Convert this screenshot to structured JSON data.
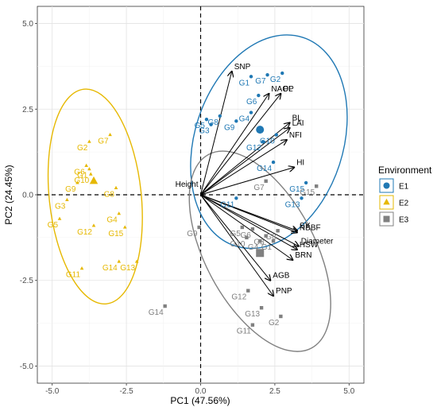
{
  "chart_data": {
    "type": "scatter",
    "subtype": "PCA biplot",
    "xlabel": "PC1 (47.56%)",
    "ylabel": "PC2 (24.45%)",
    "xlim": [
      -5.5,
      5.5
    ],
    "ylim": [
      -5.5,
      5.5
    ],
    "xticks": [
      -5.0,
      -2.5,
      0.0,
      2.5,
      5.0
    ],
    "yticks": [
      -5.0,
      -2.5,
      0.0,
      2.5,
      5.0
    ],
    "xtick_labels": [
      "-5.0",
      "-2.5",
      "0.0",
      "2.5",
      "5.0"
    ],
    "ytick_labels": [
      "-5.0",
      "-2.5",
      "0.0",
      "2.5",
      "5.0"
    ],
    "grid": true,
    "reference_lines": {
      "x": 0,
      "y": 0,
      "style": "dashed"
    },
    "legend": {
      "title": "Environment",
      "position": "right",
      "entries": [
        {
          "name": "E1",
          "shape": "circle",
          "color": "#1f78b4"
        },
        {
          "name": "E2",
          "shape": "triangle",
          "color": "#e6b800"
        },
        {
          "name": "E3",
          "shape": "square",
          "color": "#808080"
        }
      ]
    },
    "series": [
      {
        "name": "E1",
        "shape": "circle",
        "color": "#1f78b4",
        "centroid": [
          2.0,
          1.9
        ],
        "points": [
          {
            "label": "G1",
            "x": 1.7,
            "y": 3.45
          },
          {
            "label": "G2",
            "x": 2.75,
            "y": 3.55
          },
          {
            "label": "G3",
            "x": 0.35,
            "y": 2.05
          },
          {
            "label": "G4",
            "x": 1.7,
            "y": 2.4
          },
          {
            "label": "G5",
            "x": 0.2,
            "y": 2.2
          },
          {
            "label": "G6",
            "x": 1.95,
            "y": 2.9
          },
          {
            "label": "G7",
            "x": 2.25,
            "y": 3.5
          },
          {
            "label": "G8",
            "x": 0.65,
            "y": 2.3
          },
          {
            "label": "G9",
            "x": 1.2,
            "y": 2.15
          },
          {
            "label": "G10",
            "x": 2.55,
            "y": 1.75
          },
          {
            "label": "G11",
            "x": 1.2,
            "y": -0.1
          },
          {
            "label": "G12",
            "x": 2.1,
            "y": 1.55
          },
          {
            "label": "G13",
            "x": 3.4,
            "y": -0.1
          },
          {
            "label": "G14",
            "x": 2.45,
            "y": 0.95
          },
          {
            "label": "G15",
            "x": 3.55,
            "y": 0.35
          }
        ]
      },
      {
        "name": "E2",
        "shape": "triangle",
        "color": "#e6b800",
        "centroid": [
          -3.6,
          0.4
        ],
        "points": [
          {
            "label": "G1",
            "x": -3.75,
            "y": 0.75
          },
          {
            "label": "G2",
            "x": -3.75,
            "y": 1.55
          },
          {
            "label": "G3",
            "x": -4.5,
            "y": -0.15
          },
          {
            "label": "G4",
            "x": -2.75,
            "y": -0.55
          },
          {
            "label": "G5",
            "x": -4.75,
            "y": -0.7
          },
          {
            "label": "G6",
            "x": -3.85,
            "y": 0.85
          },
          {
            "label": "G7",
            "x": -3.05,
            "y": 1.75
          },
          {
            "label": "G8",
            "x": -2.85,
            "y": 0.2
          },
          {
            "label": "G9",
            "x": -4.15,
            "y": 0.35
          },
          {
            "label": "G10",
            "x": -3.7,
            "y": 0.6
          },
          {
            "label": "G11",
            "x": -4.0,
            "y": -2.15
          },
          {
            "label": "G12",
            "x": -3.6,
            "y": -0.9
          },
          {
            "label": "G13",
            "x": -2.15,
            "y": -1.95
          },
          {
            "label": "G14",
            "x": -2.75,
            "y": -1.95
          },
          {
            "label": "G15",
            "x": -2.55,
            "y": -0.95
          }
        ]
      },
      {
        "name": "E3",
        "shape": "square",
        "color": "#808080",
        "centroid": [
          2.0,
          -1.7
        ],
        "points": [
          {
            "label": "G1",
            "x": 2.45,
            "y": -1.35
          },
          {
            "label": "G2",
            "x": 2.7,
            "y": -3.55
          },
          {
            "label": "G3",
            "x": 2.2,
            "y": -1.2
          },
          {
            "label": "G4",
            "x": 2.0,
            "y": -1.35
          },
          {
            "label": "G5",
            "x": 1.4,
            "y": -0.95
          },
          {
            "label": "G6",
            "x": 1.75,
            "y": -1.0
          },
          {
            "label": "G7",
            "x": 2.2,
            "y": 0.4
          },
          {
            "label": "G8",
            "x": 2.6,
            "y": -1.05
          },
          {
            "label": "G9",
            "x": -0.05,
            "y": -0.95
          },
          {
            "label": "G10",
            "x": 1.55,
            "y": -1.25
          },
          {
            "label": "G11",
            "x": 1.75,
            "y": -3.8
          },
          {
            "label": "G12",
            "x": 1.6,
            "y": -2.8
          },
          {
            "label": "G13",
            "x": 2.05,
            "y": -3.3
          },
          {
            "label": "G14",
            "x": -1.2,
            "y": -3.25
          },
          {
            "label": "G15",
            "x": 3.9,
            "y": 0.25
          }
        ]
      }
    ],
    "loadings": [
      {
        "label": "SNP",
        "x": 1.05,
        "y": 3.6
      },
      {
        "label": "NAOP",
        "x": 2.3,
        "y": 2.95
      },
      {
        "label": "PL",
        "x": 2.7,
        "y": 2.95
      },
      {
        "label": "BL",
        "x": 3.0,
        "y": 2.1
      },
      {
        "label": "LAI",
        "x": 3.0,
        "y": 1.95
      },
      {
        "label": "NFI",
        "x": 2.9,
        "y": 1.6
      },
      {
        "label": "HI",
        "x": 3.15,
        "y": 0.8
      },
      {
        "label": "Height",
        "x": 0.0,
        "y": 0.0
      },
      {
        "label": "SY",
        "x": 3.25,
        "y": -1.05
      },
      {
        "label": "NBBF",
        "x": 3.25,
        "y": -1.1
      },
      {
        "label": "Diameter",
        "x": 3.3,
        "y": -1.5
      },
      {
        "label": "HSW",
        "x": 3.25,
        "y": -1.6
      },
      {
        "label": "BRN",
        "x": 3.1,
        "y": -1.9
      },
      {
        "label": "AGB",
        "x": 2.35,
        "y": -2.5
      },
      {
        "label": "PNP",
        "x": 2.45,
        "y": -2.95
      }
    ],
    "ellipses": [
      {
        "group": "E1",
        "color": "#1f78b4",
        "cx": 2.3,
        "cy": 1.55,
        "rx": 2.5,
        "ry": 3.2,
        "rotation_deg": 18
      },
      {
        "group": "E2",
        "color": "#e6b800",
        "cx": -3.55,
        "cy": -0.05,
        "rx": 1.55,
        "ry": 3.15,
        "rotation_deg": -6
      },
      {
        "group": "E3",
        "color": "#808080",
        "cx": 2.0,
        "cy": -1.65,
        "rx": 1.85,
        "ry": 3.2,
        "rotation_deg": -28
      }
    ]
  }
}
